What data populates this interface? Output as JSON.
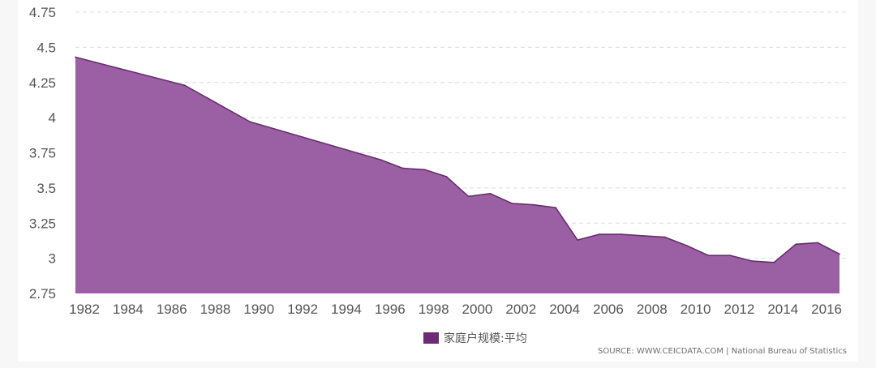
{
  "chart_data": {
    "type": "area",
    "x": [
      1982,
      1987,
      1990,
      1996,
      1997,
      1998,
      1999,
      2000,
      2001,
      2002,
      2003,
      2004,
      2005,
      2006,
      2007,
      2008,
      2009,
      2010,
      2011,
      2012,
      2013,
      2014,
      2015,
      2016,
      2017
    ],
    "series": [
      {
        "name": "家庭户规模:平均",
        "color": "#9b5fa3",
        "line_color": "#6d2a75",
        "values": [
          4.43,
          4.23,
          3.97,
          3.7,
          3.64,
          3.63,
          3.58,
          3.44,
          3.46,
          3.39,
          3.38,
          3.36,
          3.13,
          3.17,
          3.17,
          3.16,
          3.15,
          3.09,
          3.02,
          3.02,
          2.98,
          2.97,
          3.1,
          3.11,
          3.03
        ]
      }
    ],
    "x_tick_labels": [
      "1982",
      "1984",
      "1986",
      "1988",
      "1990",
      "1992",
      "1994",
      "1996",
      "1998",
      "2000",
      "2002",
      "2004",
      "2006",
      "2008",
      "2010",
      "2012",
      "2014",
      "2016"
    ],
    "y_tick_labels": [
      "2.75",
      "3",
      "3.25",
      "3.5",
      "3.75",
      "4",
      "4.25",
      "4.5",
      "4.75"
    ],
    "y_ticks": [
      2.75,
      3,
      3.25,
      3.5,
      3.75,
      4,
      4.25,
      4.5,
      4.75
    ],
    "ylim": [
      2.75,
      4.75
    ],
    "xlim": [
      1982,
      2017
    ],
    "grid": "horizontal-dashed",
    "legend_position": "bottom-center",
    "source": "SOURCE: WWW.CEICDATA.COM | National Bureau of Statistics"
  }
}
